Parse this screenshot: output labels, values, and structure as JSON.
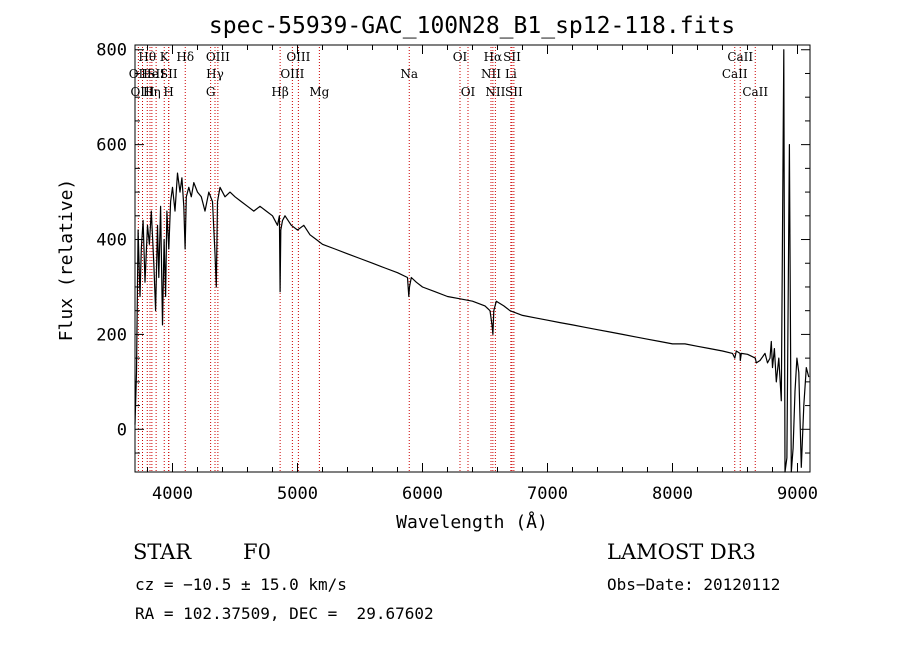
{
  "chart_data": {
    "type": "line",
    "title": "spec-55939-GAC_100N28_B1_sp12-118.fits",
    "xlabel": "Wavelength (Å)",
    "ylabel": "Flux (relative)",
    "xlim": [
      3700,
      9100
    ],
    "ylim": [
      -90,
      810
    ],
    "xticks": [
      4000,
      5000,
      6000,
      7000,
      8000,
      9000
    ],
    "yticks": [
      0,
      200,
      400,
      600,
      800
    ],
    "grid": false,
    "series": [
      {
        "name": "flux",
        "color": "#000000",
        "x": [
          3700,
          3712,
          3725,
          3740,
          3750,
          3765,
          3780,
          3800,
          3815,
          3830,
          3850,
          3865,
          3880,
          3890,
          3905,
          3920,
          3933,
          3945,
          3955,
          3970,
          3985,
          4000,
          4020,
          4040,
          4060,
          4075,
          4090,
          4101,
          4110,
          4130,
          4150,
          4170,
          4200,
          4230,
          4260,
          4290,
          4320,
          4340,
          4350,
          4360,
          4380,
          4420,
          4460,
          4500,
          4550,
          4600,
          4650,
          4700,
          4750,
          4800,
          4840,
          4855,
          4861,
          4866,
          4880,
          4900,
          4950,
          5000,
          5050,
          5100,
          5150,
          5200,
          5300,
          5400,
          5500,
          5600,
          5700,
          5800,
          5880,
          5890,
          5896,
          5910,
          5950,
          6000,
          6100,
          6200,
          6300,
          6400,
          6500,
          6540,
          6556,
          6563,
          6570,
          6590,
          6650,
          6700,
          6800,
          6900,
          7000,
          7100,
          7200,
          7300,
          7400,
          7500,
          7600,
          7700,
          7800,
          7900,
          8000,
          8100,
          8200,
          8300,
          8400,
          8480,
          8498,
          8510,
          8540,
          8542,
          8550,
          8600,
          8662,
          8670,
          8700,
          8740,
          8760,
          8780,
          8790,
          8800,
          8815,
          8830,
          8850,
          8870,
          8890,
          8900,
          8915,
          8935,
          8950,
          8965,
          8980,
          8995,
          9010,
          9030,
          9050,
          9070,
          9090
        ],
        "values": [
          10,
          120,
          420,
          280,
          380,
          440,
          310,
          430,
          390,
          460,
          350,
          250,
          430,
          320,
          470,
          220,
          400,
          280,
          460,
          380,
          480,
          510,
          460,
          540,
          500,
          530,
          470,
          380,
          490,
          510,
          490,
          520,
          500,
          490,
          460,
          500,
          480,
          370,
          300,
          480,
          510,
          490,
          500,
          490,
          480,
          470,
          460,
          470,
          460,
          450,
          430,
          450,
          290,
          420,
          440,
          450,
          430,
          420,
          430,
          410,
          400,
          390,
          380,
          370,
          360,
          350,
          340,
          330,
          320,
          280,
          300,
          320,
          310,
          300,
          290,
          280,
          275,
          270,
          260,
          250,
          220,
          200,
          250,
          270,
          260,
          250,
          240,
          235,
          230,
          225,
          220,
          215,
          210,
          205,
          200,
          195,
          190,
          185,
          180,
          180,
          175,
          170,
          165,
          160,
          150,
          165,
          160,
          145,
          160,
          158,
          150,
          140,
          145,
          160,
          140,
          150,
          185,
          130,
          170,
          100,
          150,
          60,
          800,
          -90,
          -60,
          600,
          -90,
          -40,
          80,
          150,
          120,
          -80,
          50,
          130,
          110
        ]
      }
    ],
    "emission_lines": [
      {
        "label": "Hθ",
        "wavelength": 3798,
        "row": 0
      },
      {
        "label": "OII",
        "wavelength": 3727,
        "row": 1
      },
      {
        "label": "OIII",
        "wavelength": 3760,
        "row": 2
      },
      {
        "label": "He",
        "wavelength": 3820,
        "row": 1
      },
      {
        "label": "Hη",
        "wavelength": 3835,
        "row": 2
      },
      {
        "label": "SII",
        "wavelength": 3869,
        "row": 1
      },
      {
        "label": "K",
        "wavelength": 3934,
        "row": 0
      },
      {
        "label": "H",
        "wavelength": 3969,
        "row": 2
      },
      {
        "label": "SII",
        "wavelength": 3970,
        "row": 1
      },
      {
        "label": "Hδ",
        "wavelength": 4102,
        "row": 0
      },
      {
        "label": "OIII",
        "wavelength": 4363,
        "row": 0
      },
      {
        "label": "Hγ",
        "wavelength": 4340,
        "row": 1
      },
      {
        "label": "G",
        "wavelength": 4305,
        "row": 2
      },
      {
        "label": "Hβ",
        "wavelength": 4861,
        "row": 2
      },
      {
        "label": "OIII",
        "wavelength": 4959,
        "row": 1
      },
      {
        "label": "OIII",
        "wavelength": 5007,
        "row": 0
      },
      {
        "label": "Mg",
        "wavelength": 5175,
        "row": 2
      },
      {
        "label": "Na",
        "wavelength": 5894,
        "row": 1
      },
      {
        "label": "OI",
        "wavelength": 6300,
        "row": 0
      },
      {
        "label": "OI",
        "wavelength": 6364,
        "row": 2
      },
      {
        "label": "NII",
        "wavelength": 6548,
        "row": 1
      },
      {
        "label": "Hα",
        "wavelength": 6563,
        "row": 0
      },
      {
        "label": "NII",
        "wavelength": 6583,
        "row": 2
      },
      {
        "label": "SII",
        "wavelength": 6716,
        "row": 0
      },
      {
        "label": "Li",
        "wavelength": 6707,
        "row": 1
      },
      {
        "label": "SII",
        "wavelength": 6731,
        "row": 2
      },
      {
        "label": "CaII",
        "wavelength": 8498,
        "row": 1
      },
      {
        "label": "CaII",
        "wavelength": 8542,
        "row": 0
      },
      {
        "label": "CaII",
        "wavelength": 8662,
        "row": 2
      }
    ],
    "line_color": "#cc0000"
  },
  "info": {
    "object_class": "STAR",
    "subclass": "F0",
    "survey": "LAMOST DR3",
    "redshift_text": "cz = −10.5 ± 15.0 km/s",
    "obs_date_text": "Obs−Date: 20120112",
    "coords_text": "RA = 102.37509, DEC =  29.67602"
  }
}
